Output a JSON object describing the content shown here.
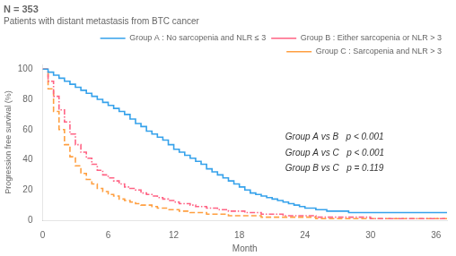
{
  "chart_data": {
    "type": "line",
    "title": "N = 353",
    "subtitle": "Patients with distant metastasis from BTC cancer",
    "xlabel": "Month",
    "ylabel": "Progression free survival (%)",
    "xlim": [
      0,
      37
    ],
    "ylim": [
      0,
      103
    ],
    "xticks": [
      0,
      6,
      12,
      18,
      24,
      30,
      36
    ],
    "yticks": [
      0,
      20,
      40,
      60,
      80,
      100
    ],
    "grid": false,
    "legend": "upper right",
    "series": [
      {
        "name": "Group A : No sarcopenia and NLR ≤ 3",
        "line_style": "solid",
        "x": [
          0,
          0.5,
          1,
          1.5,
          2,
          2.5,
          3,
          3.5,
          4,
          4.5,
          5,
          5.5,
          6,
          6.5,
          7,
          7.5,
          8,
          8.5,
          9,
          9.5,
          10,
          10.5,
          11,
          11.5,
          12,
          12.5,
          13,
          13.5,
          14,
          14.5,
          15,
          15.5,
          16,
          16.5,
          17,
          17.5,
          18,
          18.5,
          19,
          19.5,
          20,
          20.5,
          21,
          21.5,
          22,
          22.5,
          23,
          23.5,
          24,
          25,
          26,
          27,
          28,
          29,
          30,
          31,
          32,
          33,
          34,
          35,
          36,
          37
        ],
        "values": [
          100,
          98,
          96,
          94,
          92,
          90,
          88,
          86,
          84,
          82,
          80,
          78,
          76,
          74,
          72,
          70,
          67,
          64,
          62,
          59,
          57,
          55,
          53,
          50,
          47,
          45,
          43,
          41,
          39,
          37,
          34,
          32,
          30,
          28,
          26,
          24,
          22,
          20,
          18,
          17,
          16,
          15,
          14,
          13,
          12,
          11,
          10,
          9,
          8,
          7,
          6,
          6,
          5,
          5,
          5,
          5,
          5,
          5,
          5,
          5,
          5,
          5
        ]
      },
      {
        "name": "Group B : Either sarcopenia or NLR > 3",
        "line_style": "dashdot",
        "x": [
          0,
          0.5,
          1,
          1.5,
          2,
          2.5,
          3,
          3.5,
          4,
          4.5,
          5,
          5.5,
          6,
          6.5,
          7,
          7.5,
          8,
          8.5,
          9,
          9.5,
          10,
          10.5,
          11,
          11.5,
          12,
          12.5,
          13,
          13.5,
          14,
          14.5,
          15,
          15.5,
          16,
          16.5,
          17,
          17.5,
          18,
          18.5,
          19,
          20,
          21,
          22,
          23,
          24,
          25,
          26,
          27,
          28,
          29,
          30,
          31,
          32,
          33,
          34,
          35,
          36,
          37
        ],
        "values": [
          100,
          92,
          82,
          73,
          65,
          57,
          50,
          45,
          41,
          37,
          33,
          30,
          28,
          26,
          24,
          22,
          21,
          20,
          18,
          17,
          16,
          15,
          14,
          13,
          12,
          11,
          11,
          10,
          9,
          9,
          8,
          8,
          7,
          7,
          6,
          6,
          6,
          5,
          5,
          4,
          4,
          3,
          3,
          3,
          2,
          2,
          2,
          2,
          2,
          1,
          1,
          1,
          1,
          1,
          1,
          1,
          1
        ]
      },
      {
        "name": "Group C : Sarcopenia and NLR > 3",
        "line_style": "dashed",
        "x": [
          0,
          0.5,
          1,
          1.5,
          2,
          2.5,
          3,
          3.5,
          4,
          4.5,
          5,
          5.5,
          6,
          6.5,
          7,
          7.5,
          8,
          8.5,
          9,
          9.5,
          10,
          10.5,
          11,
          11.5,
          12,
          12.5,
          13,
          13.5,
          14,
          14.5,
          15,
          15.5,
          16,
          17,
          18,
          19,
          20,
          21,
          22,
          23,
          24,
          25,
          26,
          27,
          28,
          29,
          30,
          31,
          32,
          33,
          34,
          35,
          36,
          37
        ],
        "values": [
          100,
          87,
          72,
          60,
          50,
          42,
          36,
          31,
          27,
          24,
          21,
          19,
          17,
          16,
          14,
          13,
          12,
          11,
          10,
          10,
          9,
          8,
          8,
          7,
          7,
          6,
          6,
          5,
          5,
          5,
          4,
          4,
          4,
          3,
          3,
          3,
          2,
          2,
          2,
          2,
          2,
          1,
          1,
          1,
          1,
          1,
          1,
          1,
          1,
          1,
          1,
          1,
          1,
          1
        ]
      }
    ],
    "annotations": [
      "Group A vs B   p < 0.001",
      "Group A vs C   p < 0.001",
      "Group B vs C   p = 0.119"
    ]
  }
}
